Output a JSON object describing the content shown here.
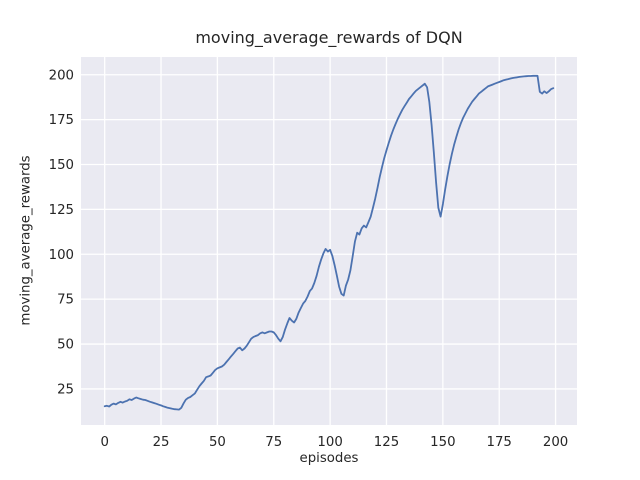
{
  "chart_data": {
    "type": "line",
    "title": "moving_average_rewards of DQN",
    "xlabel": "episodes",
    "ylabel": "moving_average_rewards",
    "grid": true,
    "legend": false,
    "xlim": [
      -10.5,
      209.5
    ],
    "ylim": [
      4.9,
      209.9
    ],
    "xticks": [
      0,
      25,
      50,
      75,
      100,
      125,
      150,
      175,
      200
    ],
    "yticks": [
      25,
      50,
      75,
      100,
      125,
      150,
      175,
      200
    ],
    "style": {
      "line_color": "#4C72B0",
      "plot_bg": "#EAEAF2",
      "fig_bg": "#FFFFFF",
      "grid_color": "#FFFFFF",
      "text_color": "#262626"
    },
    "series": [
      {
        "name": "moving_average_rewards",
        "x": [
          0,
          1,
          2,
          3,
          4,
          5,
          6,
          7,
          8,
          9,
          10,
          11,
          12,
          13,
          14,
          15,
          16,
          17,
          18,
          19,
          20,
          21,
          22,
          23,
          24,
          25,
          26,
          27,
          28,
          29,
          30,
          31,
          32,
          33,
          34,
          35,
          36,
          37,
          38,
          39,
          40,
          41,
          42,
          43,
          44,
          45,
          46,
          47,
          48,
          49,
          50,
          51,
          52,
          53,
          54,
          55,
          56,
          57,
          58,
          59,
          60,
          61,
          62,
          63,
          64,
          65,
          66,
          67,
          68,
          69,
          70,
          71,
          72,
          73,
          74,
          75,
          76,
          77,
          78,
          79,
          80,
          81,
          82,
          83,
          84,
          85,
          86,
          87,
          88,
          89,
          90,
          91,
          92,
          93,
          94,
          95,
          96,
          97,
          98,
          99,
          100,
          101,
          102,
          103,
          104,
          105,
          106,
          107,
          108,
          109,
          110,
          111,
          112,
          113,
          114,
          115,
          116,
          117,
          118,
          119,
          120,
          121,
          122,
          123,
          124,
          125,
          126,
          127,
          128,
          129,
          130,
          131,
          132,
          133,
          134,
          135,
          136,
          137,
          138,
          139,
          140,
          141,
          142,
          143,
          144,
          145,
          146,
          147,
          148,
          149,
          150,
          151,
          152,
          153,
          154,
          155,
          156,
          157,
          158,
          159,
          160,
          161,
          162,
          163,
          164,
          165,
          166,
          167,
          168,
          169,
          170,
          171,
          172,
          173,
          174,
          175,
          176,
          177,
          178,
          179,
          180,
          181,
          182,
          183,
          184,
          185,
          186,
          187,
          188,
          189,
          190,
          191,
          192,
          193,
          194,
          195,
          196,
          197,
          198,
          199
        ],
        "y": [
          15.3,
          15.6,
          15.2,
          16.2,
          16.8,
          16.4,
          17.2,
          17.8,
          17.4,
          18.0,
          18.4,
          19.2,
          18.8,
          19.6,
          20.2,
          19.8,
          19.4,
          19.0,
          18.8,
          18.4,
          17.9,
          17.5,
          17.1,
          16.7,
          16.2,
          15.8,
          15.3,
          14.9,
          14.5,
          14.2,
          13.9,
          13.7,
          13.6,
          13.5,
          14.5,
          17.0,
          19.0,
          20.0,
          20.5,
          21.5,
          22.5,
          24.5,
          26.5,
          28.0,
          29.5,
          31.5,
          32.0,
          32.5,
          34.0,
          35.5,
          36.5,
          37.0,
          37.5,
          38.5,
          40.0,
          41.5,
          43.0,
          44.5,
          46.0,
          47.5,
          48.0,
          46.5,
          47.5,
          49.0,
          51.0,
          53.0,
          54.0,
          54.5,
          55.0,
          56.0,
          56.5,
          56.0,
          56.5,
          57.0,
          57.0,
          56.5,
          55.0,
          53.0,
          51.5,
          54.0,
          58.0,
          61.5,
          64.5,
          63.0,
          62.0,
          64.0,
          67.5,
          70.0,
          72.5,
          74.0,
          76.5,
          79.5,
          81.0,
          84.0,
          88.0,
          93.0,
          97.0,
          100.5,
          103.0,
          101.5,
          102.5,
          99.0,
          94.0,
          88.0,
          82.0,
          78.0,
          77.0,
          82.5,
          86.0,
          91.0,
          99.0,
          107.0,
          112.0,
          111.0,
          114.5,
          116.0,
          115.0,
          118.0,
          121.0,
          126.0,
          131.0,
          137.0,
          143.0,
          148.5,
          153.5,
          158.0,
          162.0,
          166.0,
          169.5,
          172.5,
          175.5,
          178.0,
          180.5,
          182.5,
          184.5,
          186.5,
          188.0,
          189.5,
          191.0,
          192.0,
          193.0,
          194.0,
          195.0,
          193.0,
          185.0,
          172.0,
          157.0,
          140.0,
          126.0,
          121.0,
          128.0,
          136.0,
          143.5,
          150.0,
          156.0,
          161.0,
          165.5,
          169.5,
          173.0,
          176.0,
          178.5,
          181.0,
          183.0,
          185.0,
          186.5,
          188.0,
          189.5,
          190.5,
          191.5,
          192.5,
          193.5,
          194.0,
          194.5,
          195.0,
          195.5,
          196.0,
          196.5,
          197.0,
          197.3,
          197.6,
          197.9,
          198.2,
          198.4,
          198.6,
          198.8,
          199.0,
          199.1,
          199.2,
          199.3,
          199.3,
          199.4,
          199.4,
          199.4,
          190.5,
          189.5,
          190.8,
          189.8,
          190.8,
          192.0,
          192.5
        ]
      }
    ]
  }
}
